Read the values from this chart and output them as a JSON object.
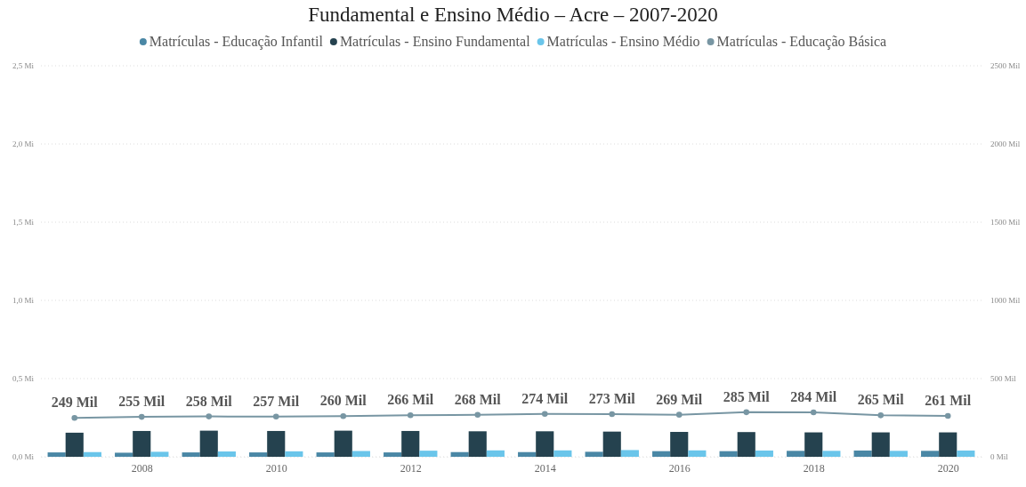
{
  "chart_data": {
    "type": "bar",
    "title": "Fundamental e Ensino Médio – Acre – 2007-2020",
    "x": [
      2007,
      2008,
      2009,
      2010,
      2011,
      2012,
      2013,
      2014,
      2015,
      2016,
      2017,
      2018,
      2019,
      2020
    ],
    "xlim": [
      2006.5,
      2020.5
    ],
    "xticks": [
      2008,
      2010,
      2012,
      2014,
      2016,
      2018,
      2020
    ],
    "ylim": [
      0,
      2.5
    ],
    "yticks": [
      {
        "value": 0,
        "label": "0,0 Mi"
      },
      {
        "value": 0.5,
        "label": "0,5 Mi"
      },
      {
        "value": 1,
        "label": "1,0 Mi"
      },
      {
        "value": 1.5,
        "label": "1,5 Mi"
      },
      {
        "value": 2,
        "label": "2,0 Mi"
      },
      {
        "value": 2.5,
        "label": "2,5 Mi"
      }
    ],
    "y2lim": [
      0,
      2500
    ],
    "y2ticks": [
      {
        "value": 0,
        "label": "0 Mil"
      },
      {
        "value": 500,
        "label": "500 Mil"
      },
      {
        "value": 1000,
        "label": "1000 Mil"
      },
      {
        "value": 1500,
        "label": "1500 Mil"
      },
      {
        "value": 2000,
        "label": "2000 Mil"
      },
      {
        "value": 2500,
        "label": "2500 Mil"
      }
    ],
    "grid": "y",
    "legend": "top",
    "marker": "circle",
    "line_style": "solid",
    "series": [
      {
        "name": "Matrículas - Educação Infantil",
        "color": "#4a87a5",
        "values": [
          0.028,
          0.026,
          0.028,
          0.028,
          0.028,
          0.028,
          0.03,
          0.03,
          0.032,
          0.036,
          0.036,
          0.038,
          0.04,
          0.038
        ]
      },
      {
        "name": "Matrículas - Ensino Fundamental",
        "color": "#25424f",
        "values": [
          0.154,
          0.165,
          0.167,
          0.165,
          0.167,
          0.165,
          0.163,
          0.163,
          0.161,
          0.159,
          0.158,
          0.156,
          0.156,
          0.156
        ]
      },
      {
        "name": "Matrículas - Ensino Médio",
        "color": "#6ac5ea",
        "values": [
          0.03,
          0.032,
          0.034,
          0.035,
          0.037,
          0.039,
          0.041,
          0.041,
          0.043,
          0.041,
          0.04,
          0.038,
          0.038,
          0.04
        ]
      },
      {
        "type": "line",
        "axis": "y2",
        "name": "Matrículas - Educação Básica",
        "color": "#7896a3",
        "values": [
          249,
          255,
          258,
          257,
          260,
          266,
          268,
          274,
          273,
          269,
          285,
          284,
          265,
          261
        ],
        "value_labels": [
          "249 Mil",
          "255 Mil",
          "258 Mil",
          "257 Mil",
          "260 Mil",
          "266 Mil",
          "268 Mil",
          "274 Mil",
          "273 Mil",
          "269 Mil",
          "285 Mil",
          "284 Mil",
          "265 Mil",
          "261 Mil"
        ]
      }
    ]
  }
}
